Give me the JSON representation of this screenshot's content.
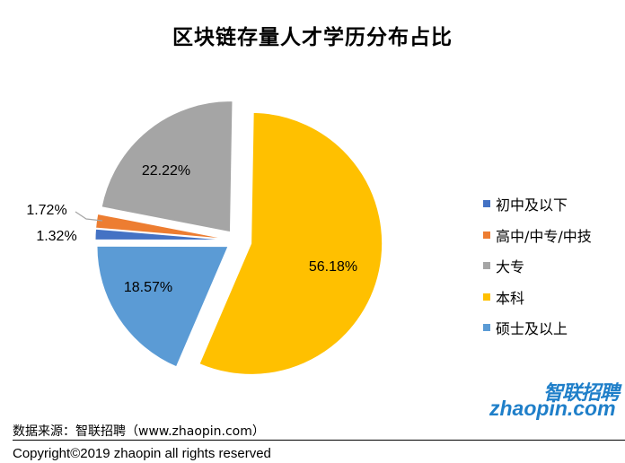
{
  "title": "区块链存量人才学历分布占比",
  "chart_data": {
    "type": "pie",
    "title": "区块链存量人才学历分布占比",
    "categories": [
      "初中及以下",
      "高中/中专/中技",
      "大专",
      "本科",
      "硕士及以上"
    ],
    "values": [
      1.32,
      1.72,
      22.22,
      56.18,
      18.57
    ],
    "labels": [
      "1.32%",
      "1.72%",
      "22.22%",
      "56.18%",
      "18.57%"
    ],
    "colors": [
      "#4472c4",
      "#ed7d31",
      "#a5a5a5",
      "#ffc000",
      "#5b9bd5"
    ],
    "legend_position": "right"
  },
  "source": "数据来源：智联招聘（www.zhaopin.com）",
  "copyright": "Copyright©2019 zhaopin all rights reserved",
  "logo": {
    "cn": "智联招聘",
    "en": "zhaopin.com",
    "colors": [
      "#1f7fc9",
      "#f5a21a"
    ]
  }
}
